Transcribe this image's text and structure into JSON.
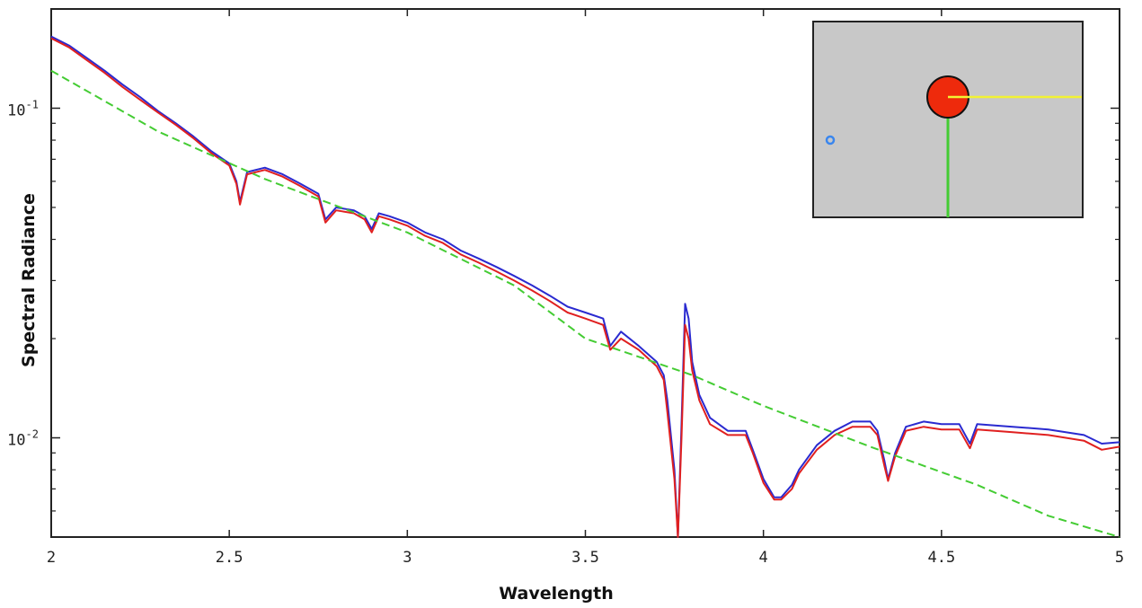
{
  "chart_data": {
    "type": "line",
    "xlabel": "Wavelength",
    "ylabel": "Spectral Radiance",
    "xlim": [
      2,
      5
    ],
    "ylim": [
      0.005,
      0.2
    ],
    "y_scale": "log",
    "grid": false,
    "x_ticks": [
      {
        "value": 2,
        "label": "2"
      },
      {
        "value": 2.5,
        "label": "2.5"
      },
      {
        "value": 3,
        "label": "3"
      },
      {
        "value": 3.5,
        "label": "3.5"
      },
      {
        "value": 4,
        "label": "4"
      },
      {
        "value": 4.5,
        "label": "4.5"
      },
      {
        "value": 5,
        "label": "5"
      }
    ],
    "y_major_ticks": [
      {
        "value": 0.1,
        "base": "10",
        "exp": "-1"
      },
      {
        "value": 0.01,
        "base": "10",
        "exp": "-2"
      }
    ],
    "series": [
      {
        "color": "#2a2ad0",
        "style": "solid",
        "x": [
          2.0,
          2.05,
          2.1,
          2.15,
          2.2,
          2.25,
          2.3,
          2.35,
          2.4,
          2.45,
          2.5,
          2.52,
          2.53,
          2.55,
          2.6,
          2.65,
          2.7,
          2.75,
          2.77,
          2.8,
          2.85,
          2.88,
          2.9,
          2.92,
          2.95,
          3.0,
          3.05,
          3.1,
          3.15,
          3.2,
          3.25,
          3.3,
          3.35,
          3.4,
          3.45,
          3.5,
          3.55,
          3.57,
          3.6,
          3.65,
          3.7,
          3.72,
          3.73,
          3.75,
          3.76,
          3.77,
          3.78,
          3.79,
          3.8,
          3.82,
          3.85,
          3.9,
          3.95,
          3.97,
          4.0,
          4.03,
          4.05,
          4.08,
          4.1,
          4.15,
          4.2,
          4.25,
          4.3,
          4.32,
          4.34,
          4.35,
          4.37,
          4.4,
          4.45,
          4.5,
          4.55,
          4.58,
          4.6,
          4.7,
          4.8,
          4.9,
          4.95,
          5.0
        ],
        "y": [
          0.165,
          0.155,
          0.142,
          0.13,
          0.118,
          0.108,
          0.098,
          0.09,
          0.082,
          0.074,
          0.068,
          0.06,
          0.052,
          0.064,
          0.066,
          0.063,
          0.059,
          0.055,
          0.046,
          0.05,
          0.049,
          0.047,
          0.043,
          0.048,
          0.047,
          0.045,
          0.042,
          0.04,
          0.037,
          0.035,
          0.033,
          0.031,
          0.029,
          0.027,
          0.025,
          0.024,
          0.023,
          0.019,
          0.021,
          0.019,
          0.017,
          0.0155,
          0.013,
          0.008,
          0.004,
          0.011,
          0.0255,
          0.023,
          0.017,
          0.0135,
          0.0115,
          0.0105,
          0.0105,
          0.0092,
          0.0075,
          0.0066,
          0.0066,
          0.0072,
          0.008,
          0.0095,
          0.0105,
          0.0112,
          0.0112,
          0.0105,
          0.0085,
          0.0075,
          0.009,
          0.0108,
          0.0112,
          0.011,
          0.011,
          0.0096,
          0.011,
          0.0108,
          0.0106,
          0.0102,
          0.0096,
          0.0097
        ]
      },
      {
        "color": "#e02020",
        "style": "solid",
        "x": [
          2.0,
          2.05,
          2.1,
          2.15,
          2.2,
          2.25,
          2.3,
          2.35,
          2.4,
          2.45,
          2.5,
          2.52,
          2.53,
          2.55,
          2.6,
          2.65,
          2.7,
          2.75,
          2.77,
          2.8,
          2.85,
          2.88,
          2.9,
          2.92,
          2.95,
          3.0,
          3.05,
          3.1,
          3.15,
          3.2,
          3.25,
          3.3,
          3.35,
          3.4,
          3.45,
          3.5,
          3.55,
          3.57,
          3.6,
          3.65,
          3.7,
          3.72,
          3.73,
          3.75,
          3.76,
          3.77,
          3.78,
          3.79,
          3.8,
          3.82,
          3.85,
          3.9,
          3.95,
          3.97,
          4.0,
          4.03,
          4.05,
          4.08,
          4.1,
          4.15,
          4.2,
          4.25,
          4.3,
          4.32,
          4.34,
          4.35,
          4.37,
          4.4,
          4.45,
          4.5,
          4.55,
          4.58,
          4.6,
          4.7,
          4.8,
          4.9,
          4.95,
          5.0
        ],
        "y": [
          0.163,
          0.153,
          0.14,
          0.128,
          0.116,
          0.106,
          0.097,
          0.089,
          0.081,
          0.073,
          0.067,
          0.059,
          0.051,
          0.063,
          0.065,
          0.062,
          0.058,
          0.054,
          0.045,
          0.049,
          0.048,
          0.046,
          0.042,
          0.047,
          0.046,
          0.044,
          0.041,
          0.039,
          0.036,
          0.034,
          0.032,
          0.03,
          0.028,
          0.026,
          0.024,
          0.023,
          0.022,
          0.0185,
          0.02,
          0.0185,
          0.0165,
          0.015,
          0.012,
          0.0075,
          0.004,
          0.01,
          0.022,
          0.02,
          0.016,
          0.013,
          0.011,
          0.0102,
          0.0102,
          0.009,
          0.0073,
          0.0065,
          0.0065,
          0.007,
          0.0078,
          0.0092,
          0.0102,
          0.0108,
          0.0108,
          0.0102,
          0.0082,
          0.0074,
          0.0088,
          0.0105,
          0.0108,
          0.0106,
          0.0106,
          0.0093,
          0.0106,
          0.0104,
          0.0102,
          0.0098,
          0.0092,
          0.0094
        ]
      },
      {
        "color": "#44cc33",
        "style": "dashed",
        "x": [
          2.0,
          2.3,
          2.6,
          3.0,
          3.3,
          3.5,
          3.8,
          4.0,
          4.3,
          4.6,
          4.8,
          5.0
        ],
        "y": [
          0.13,
          0.085,
          0.061,
          0.042,
          0.029,
          0.02,
          0.0155,
          0.0125,
          0.0094,
          0.0072,
          0.0058,
          0.0045
        ]
      }
    ],
    "inset": {
      "background": "#c8c8c8",
      "circle_color": "#ee2a0c",
      "marker_color": "#3a86ee",
      "horizontal_line_color": "#f2f233",
      "vertical_line_color": "#44cc33"
    }
  }
}
